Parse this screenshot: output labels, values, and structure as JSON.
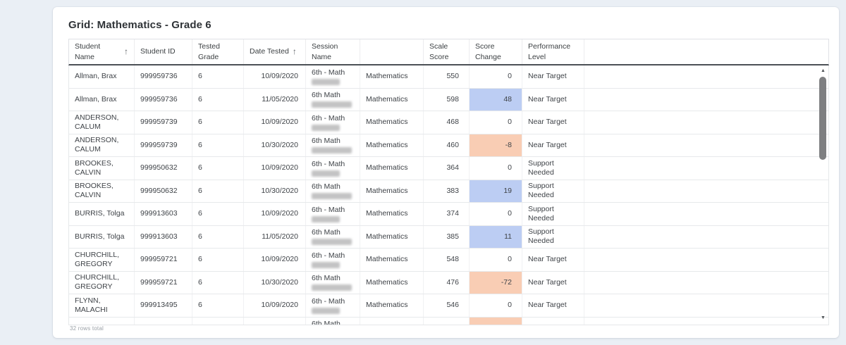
{
  "window": {
    "title": "Grid: Mathematics - Grade 6",
    "rows_total": "32 rows total"
  },
  "colors": {
    "positive_change_bg": "#bccdf3",
    "negative_change_bg": "#f9cdb4"
  },
  "table": {
    "sort_icon": "↑",
    "scroll_up_icon": "▲",
    "scroll_down_icon": "▼",
    "columns": [
      {
        "label": "Student Name",
        "sorted": "asc"
      },
      {
        "label": "Student ID"
      },
      {
        "label": "Tested Grade"
      },
      {
        "label": "Date Tested",
        "sorted": "asc"
      },
      {
        "label": "Session Name"
      },
      {
        "label": ""
      },
      {
        "label": "Scale Score"
      },
      {
        "label": "Score Change"
      },
      {
        "label": "Performance Level"
      },
      {
        "label": ""
      }
    ],
    "rows": [
      {
        "name": "Allman, Brax",
        "id": "999959736",
        "grade": "6",
        "date": "10/09/2020",
        "session": "6th - Math",
        "session_redacted": "short",
        "subject": "Mathematics",
        "score": "550",
        "change": "0",
        "change_type": "none",
        "level": "Near Target"
      },
      {
        "name": "Allman, Brax",
        "id": "999959736",
        "grade": "6",
        "date": "11/05/2020",
        "session": "6th Math",
        "session_redacted": "long",
        "subject": "Mathematics",
        "score": "598",
        "change": "48",
        "change_type": "pos",
        "level": "Near Target"
      },
      {
        "name": "ANDERSON, CALUM",
        "id": "999959739",
        "grade": "6",
        "date": "10/09/2020",
        "session": "6th - Math",
        "session_redacted": "short",
        "subject": "Mathematics",
        "score": "468",
        "change": "0",
        "change_type": "none",
        "level": "Near Target"
      },
      {
        "name": "ANDERSON, CALUM",
        "id": "999959739",
        "grade": "6",
        "date": "10/30/2020",
        "session": "6th Math",
        "session_redacted": "long",
        "subject": "Mathematics",
        "score": "460",
        "change": "-8",
        "change_type": "neg",
        "level": "Near Target"
      },
      {
        "name": "BROOKES, CALVIN",
        "id": "999950632",
        "grade": "6",
        "date": "10/09/2020",
        "session": "6th - Math",
        "session_redacted": "short",
        "subject": "Mathematics",
        "score": "364",
        "change": "0",
        "change_type": "none",
        "level": "Support Needed"
      },
      {
        "name": "BROOKES, CALVIN",
        "id": "999950632",
        "grade": "6",
        "date": "10/30/2020",
        "session": "6th Math",
        "session_redacted": "long",
        "subject": "Mathematics",
        "score": "383",
        "change": "19",
        "change_type": "pos",
        "level": "Support Needed"
      },
      {
        "name": "BURRIS, Tolga",
        "id": "999913603",
        "grade": "6",
        "date": "10/09/2020",
        "session": "6th - Math",
        "session_redacted": "short",
        "subject": "Mathematics",
        "score": "374",
        "change": "0",
        "change_type": "none",
        "level": "Support Needed"
      },
      {
        "name": "BURRIS, Tolga",
        "id": "999913603",
        "grade": "6",
        "date": "11/05/2020",
        "session": "6th Math",
        "session_redacted": "long",
        "subject": "Mathematics",
        "score": "385",
        "change": "11",
        "change_type": "pos",
        "level": "Support Needed"
      },
      {
        "name": "CHURCHILL, GREGORY",
        "id": "999959721",
        "grade": "6",
        "date": "10/09/2020",
        "session": "6th - Math",
        "session_redacted": "short",
        "subject": "Mathematics",
        "score": "548",
        "change": "0",
        "change_type": "none",
        "level": "Near Target"
      },
      {
        "name": "CHURCHILL, GREGORY",
        "id": "999959721",
        "grade": "6",
        "date": "10/30/2020",
        "session": "6th Math",
        "session_redacted": "long",
        "subject": "Mathematics",
        "score": "476",
        "change": "-72",
        "change_type": "neg",
        "level": "Near Target"
      },
      {
        "name": "FLYNN, MALACHI",
        "id": "999913495",
        "grade": "6",
        "date": "10/09/2020",
        "session": "6th - Math",
        "session_redacted": "short",
        "subject": "Mathematics",
        "score": "546",
        "change": "0",
        "change_type": "none",
        "level": "Near Target"
      },
      {
        "name": "",
        "id": "",
        "grade": "",
        "date": "",
        "session": "6th Math",
        "session_redacted": "long",
        "subject": "",
        "score": "",
        "change": "",
        "change_type": "neg",
        "level": ""
      }
    ]
  }
}
